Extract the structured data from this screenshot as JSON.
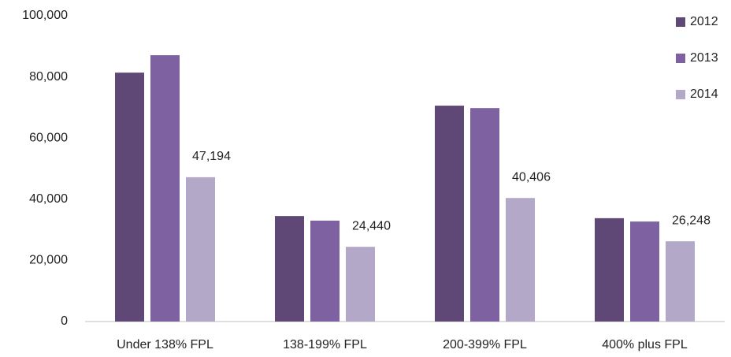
{
  "chart_data": {
    "type": "bar",
    "categories": [
      "Under 138% FPL",
      "138-199% FPL",
      "200-399% FPL",
      "400% plus FPL"
    ],
    "series": [
      {
        "name": "2012",
        "color": "#5f4876",
        "values": [
          81400,
          34500,
          70600,
          33800
        ]
      },
      {
        "name": "2013",
        "color": "#7e61a0",
        "values": [
          87100,
          33000,
          69800,
          32700
        ]
      },
      {
        "name": "2014",
        "color": "#b3a8c8",
        "values": [
          47194,
          24440,
          40406,
          26248
        ],
        "value_labels": [
          "47,194",
          "24,440",
          "40,406",
          "26,248"
        ]
      }
    ],
    "ylim": [
      0,
      100000
    ],
    "yticks": [
      0,
      {
        "value": 20000,
        "label": "20,000"
      },
      {
        "value": 40000,
        "label": "40,000"
      },
      {
        "value": 60000,
        "label": "60,000"
      },
      {
        "value": 80000,
        "label": "80,000"
      },
      {
        "value": 100000,
        "label": "100,000"
      }
    ],
    "grid": false,
    "legend": "top-right"
  }
}
